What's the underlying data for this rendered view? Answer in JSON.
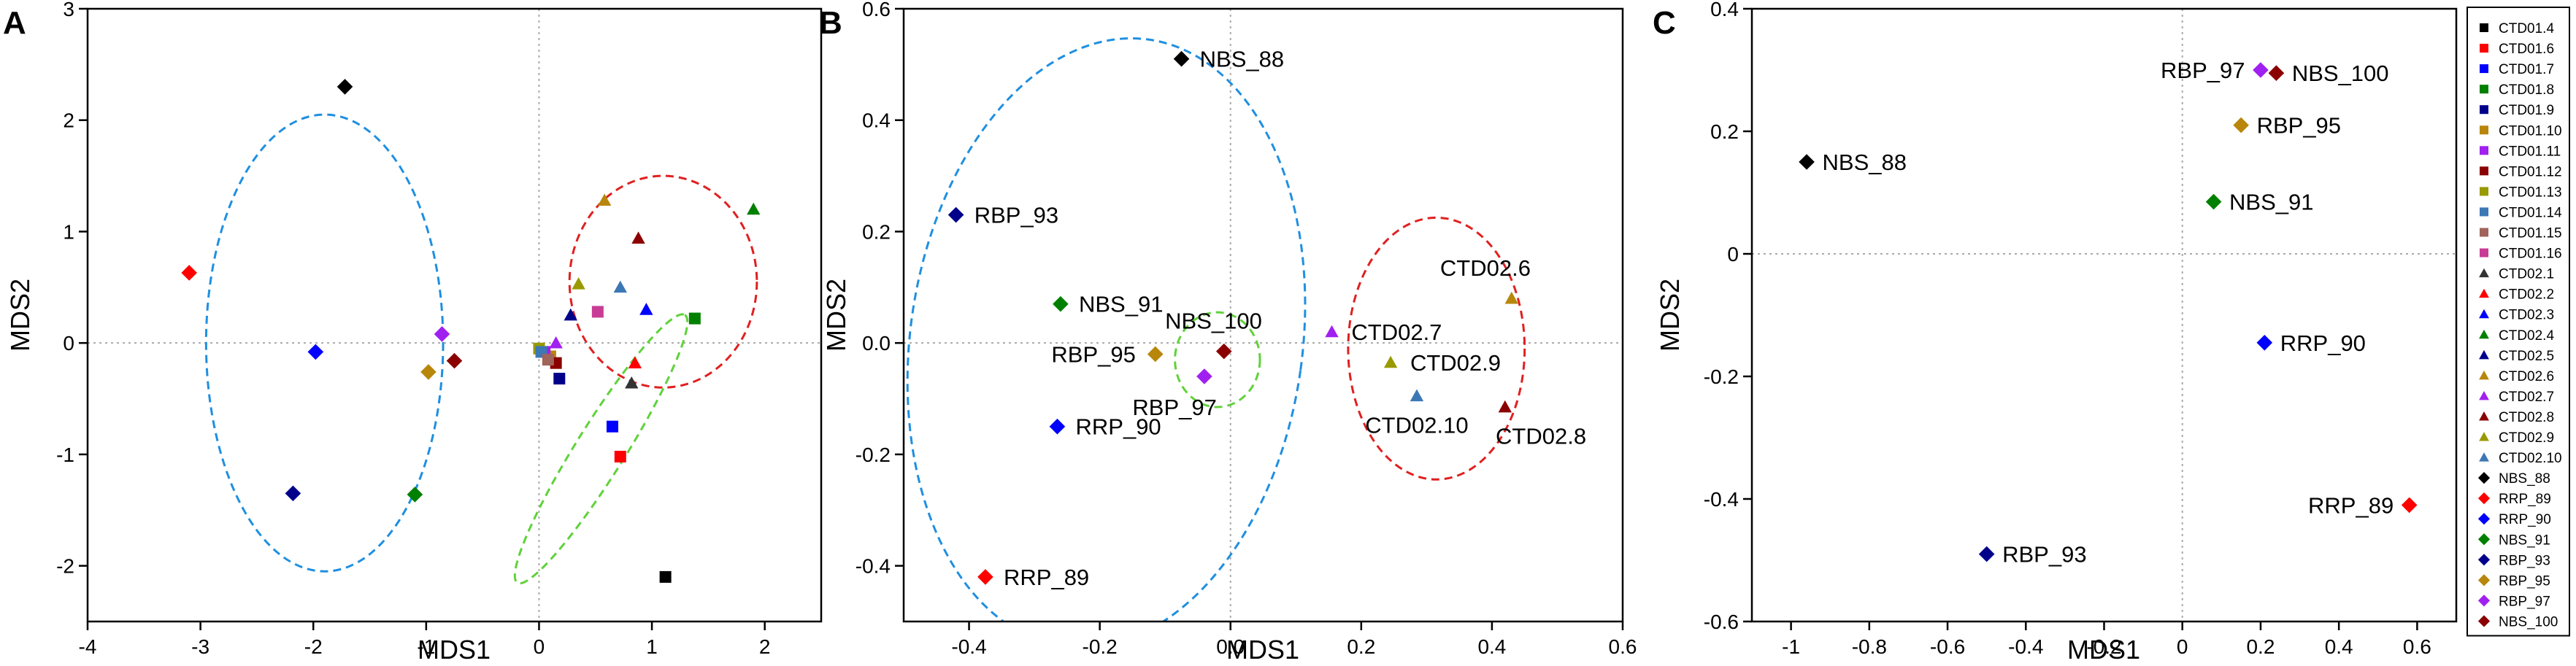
{
  "legend": [
    {
      "name": "CTD01.4",
      "shape": "square",
      "color": "#000000"
    },
    {
      "name": "CTD01.6",
      "shape": "square",
      "color": "#ff0000"
    },
    {
      "name": "CTD01.7",
      "shape": "square",
      "color": "#0000ff"
    },
    {
      "name": "CTD01.8",
      "shape": "square",
      "color": "#008000"
    },
    {
      "name": "CTD01.9",
      "shape": "square",
      "color": "#00008b"
    },
    {
      "name": "CTD01.10",
      "shape": "square",
      "color": "#b8860b"
    },
    {
      "name": "CTD01.11",
      "shape": "square",
      "color": "#a020f0"
    },
    {
      "name": "CTD01.12",
      "shape": "square",
      "color": "#8b0000"
    },
    {
      "name": "CTD01.13",
      "shape": "square",
      "color": "#999900"
    },
    {
      "name": "CTD01.14",
      "shape": "square",
      "color": "#3c78b4"
    },
    {
      "name": "CTD01.15",
      "shape": "square",
      "color": "#a0645a"
    },
    {
      "name": "CTD01.16",
      "shape": "square",
      "color": "#c83c96"
    },
    {
      "name": "CTD02.1",
      "shape": "triangle",
      "color": "#333333"
    },
    {
      "name": "CTD02.2",
      "shape": "triangle",
      "color": "#ff0000"
    },
    {
      "name": "CTD02.3",
      "shape": "triangle",
      "color": "#0000ff"
    },
    {
      "name": "CTD02.4",
      "shape": "triangle",
      "color": "#008000"
    },
    {
      "name": "CTD02.5",
      "shape": "triangle",
      "color": "#00008b"
    },
    {
      "name": "CTD02.6",
      "shape": "triangle",
      "color": "#b8860b"
    },
    {
      "name": "CTD02.7",
      "shape": "triangle",
      "color": "#a020f0"
    },
    {
      "name": "CTD02.8",
      "shape": "triangle",
      "color": "#8b0000"
    },
    {
      "name": "CTD02.9",
      "shape": "triangle",
      "color": "#999900"
    },
    {
      "name": "CTD02.10",
      "shape": "triangle",
      "color": "#3c78b4"
    },
    {
      "name": "NBS_88",
      "shape": "diamond",
      "color": "#000000"
    },
    {
      "name": "RRP_89",
      "shape": "diamond",
      "color": "#ff0000"
    },
    {
      "name": "RRP_90",
      "shape": "diamond",
      "color": "#0000ff"
    },
    {
      "name": "NBS_91",
      "shape": "diamond",
      "color": "#008000"
    },
    {
      "name": "RBP_93",
      "shape": "diamond",
      "color": "#00008b"
    },
    {
      "name": "RBP_95",
      "shape": "diamond",
      "color": "#b8860b"
    },
    {
      "name": "RBP_97",
      "shape": "diamond",
      "color": "#a020f0"
    },
    {
      "name": "NBS_100",
      "shape": "diamond",
      "color": "#8b0000"
    }
  ],
  "chart_data": [
    {
      "type": "scatter",
      "panel_label": "A",
      "xlabel": "MDS1",
      "ylabel": "MDS2",
      "xlim": [
        -4,
        2.5
      ],
      "ylim": [
        -2.5,
        3
      ],
      "xticks": [
        -4,
        -3,
        -2,
        -1,
        0,
        1,
        2
      ],
      "yticks": [
        -2,
        -1,
        0,
        1,
        2,
        3
      ],
      "points": [
        {
          "name": "CTD01.4",
          "x": 1.12,
          "y": -2.1
        },
        {
          "name": "CTD01.6",
          "x": 0.72,
          "y": -1.02
        },
        {
          "name": "CTD01.7",
          "x": 0.65,
          "y": -0.75
        },
        {
          "name": "CTD01.8",
          "x": 1.38,
          "y": 0.22
        },
        {
          "name": "CTD01.9",
          "x": 0.18,
          "y": -0.32
        },
        {
          "name": "CTD01.10",
          "x": 0.1,
          "y": -0.12
        },
        {
          "name": "CTD01.11",
          "x": 0.05,
          "y": -0.08
        },
        {
          "name": "CTD01.12",
          "x": 0.15,
          "y": -0.18
        },
        {
          "name": "CTD01.13",
          "x": 0.0,
          "y": -0.05
        },
        {
          "name": "CTD01.14",
          "x": 0.02,
          "y": -0.08
        },
        {
          "name": "CTD01.15",
          "x": 0.08,
          "y": -0.15
        },
        {
          "name": "CTD01.16",
          "x": 0.52,
          "y": 0.28
        },
        {
          "name": "CTD02.1",
          "x": 0.82,
          "y": -0.36
        },
        {
          "name": "CTD02.2",
          "x": 0.85,
          "y": -0.18
        },
        {
          "name": "CTD02.3",
          "x": 0.95,
          "y": 0.3
        },
        {
          "name": "CTD02.4",
          "x": 1.9,
          "y": 1.2
        },
        {
          "name": "CTD02.5",
          "x": 0.28,
          "y": 0.25
        },
        {
          "name": "CTD02.6",
          "x": 0.58,
          "y": 1.28
        },
        {
          "name": "CTD02.7",
          "x": 0.15,
          "y": 0.0
        },
        {
          "name": "CTD02.8",
          "x": 0.88,
          "y": 0.94
        },
        {
          "name": "CTD02.9",
          "x": 0.35,
          "y": 0.53
        },
        {
          "name": "CTD02.10",
          "x": 0.72,
          "y": 0.5
        },
        {
          "name": "NBS_88",
          "x": -1.72,
          "y": 2.3
        },
        {
          "name": "RRP_89",
          "x": -3.1,
          "y": 0.63
        },
        {
          "name": "RRP_90",
          "x": -1.98,
          "y": -0.08
        },
        {
          "name": "NBS_91",
          "x": -1.1,
          "y": -1.36
        },
        {
          "name": "RBP_93",
          "x": -2.18,
          "y": -1.35
        },
        {
          "name": "RBP_95",
          "x": -0.98,
          "y": -0.26
        },
        {
          "name": "RBP_97",
          "x": -0.86,
          "y": 0.08
        },
        {
          "name": "NBS_100",
          "x": -0.75,
          "y": -0.16
        }
      ],
      "labels": []
    },
    {
      "type": "scatter",
      "panel_label": "B",
      "xlabel": "MDS1",
      "ylabel": "MDS2",
      "xlim": [
        -0.5,
        0.6
      ],
      "ylim": [
        -0.5,
        0.6
      ],
      "xticks": [
        -0.4,
        -0.2,
        0,
        0.2,
        0.4,
        0.6
      ],
      "xtick_labels": [
        "-0.4",
        "-0.2",
        "0.0",
        "0.2",
        "0.4",
        "0.6"
      ],
      "yticks": [
        -0.4,
        -0.2,
        0,
        0.2,
        0.4,
        0.6
      ],
      "ytick_labels": [
        "-0.4",
        "-0.2",
        "0.0",
        "0.2",
        "0.4",
        "0.6"
      ],
      "points": [
        {
          "name": "NBS_88",
          "x": -0.075,
          "y": 0.51
        },
        {
          "name": "RBP_93",
          "x": -0.42,
          "y": 0.23
        },
        {
          "name": "NBS_91",
          "x": -0.26,
          "y": 0.07
        },
        {
          "name": "RBP_95",
          "x": -0.115,
          "y": -0.02
        },
        {
          "name": "NBS_100",
          "x": -0.01,
          "y": -0.015
        },
        {
          "name": "RBP_97",
          "x": -0.04,
          "y": -0.06
        },
        {
          "name": "RRP_90",
          "x": -0.265,
          "y": -0.15
        },
        {
          "name": "RRP_89",
          "x": -0.375,
          "y": -0.42
        },
        {
          "name": "CTD02.7",
          "x": 0.155,
          "y": 0.02
        },
        {
          "name": "CTD02.6",
          "x": 0.43,
          "y": 0.08
        },
        {
          "name": "CTD02.9",
          "x": 0.245,
          "y": -0.035
        },
        {
          "name": "CTD02.10",
          "x": 0.285,
          "y": -0.095
        },
        {
          "name": "CTD02.8",
          "x": 0.42,
          "y": -0.115
        }
      ],
      "labels": [
        {
          "text": "NBS_88",
          "dx": 0.028,
          "dy": 0,
          "anchor": "start"
        },
        {
          "text": "RBP_93",
          "dx": 0.028,
          "dy": 0,
          "anchor": "start"
        },
        {
          "text": "NBS_91",
          "dx": 0.028,
          "dy": 0,
          "anchor": "start"
        },
        {
          "text": "RBP_95",
          "dx": -0.03,
          "dy": 0,
          "anchor": "end"
        },
        {
          "text": "NBS_100",
          "dx": -0.09,
          "dy": 0.055,
          "anchor": "start"
        },
        {
          "text": "RBP_97",
          "dx": -0.11,
          "dy": -0.055,
          "anchor": "start"
        },
        {
          "text": "RRP_90",
          "dx": 0.028,
          "dy": 0,
          "anchor": "start"
        },
        {
          "text": "RRP_89",
          "dx": 0.028,
          "dy": 0,
          "anchor": "start"
        },
        {
          "text": "CTD02.7",
          "dx": 0.03,
          "dy": 0,
          "anchor": "start"
        },
        {
          "text": "CTD02.6",
          "dx": -0.04,
          "dy": 0.055,
          "anchor": "middle"
        },
        {
          "text": "CTD02.9",
          "dx": 0.03,
          "dy": 0,
          "anchor": "start"
        },
        {
          "text": "CTD02.10",
          "dx": 0.0,
          "dy": -0.052,
          "anchor": "middle"
        },
        {
          "text": "CTD02.8",
          "dx": 0.055,
          "dy": -0.052,
          "anchor": "middle"
        }
      ]
    },
    {
      "type": "scatter",
      "panel_label": "C",
      "xlabel": "MDS1",
      "ylabel": "MDS2",
      "xlim": [
        -1.1,
        0.7
      ],
      "ylim": [
        -0.6,
        0.4
      ],
      "xticks": [
        -1,
        -0.8,
        -0.6,
        -0.4,
        -0.2,
        0,
        0.2,
        0.4,
        0.6
      ],
      "xtick_labels": [
        "-1",
        "-0.8",
        "-0.6",
        "-0.4",
        "-0.2",
        "0",
        "0.2",
        "0.4",
        "0.6"
      ],
      "yticks": [
        -0.6,
        -0.4,
        -0.2,
        0,
        0.2,
        0.4
      ],
      "ytick_labels": [
        "-0.6",
        "-0.4",
        "-0.2",
        "0",
        "0.2",
        "0.4"
      ],
      "points": [
        {
          "name": "NBS_88",
          "x": -0.96,
          "y": 0.15
        },
        {
          "name": "RBP_97",
          "x": 0.2,
          "y": 0.3
        },
        {
          "name": "NBS_100",
          "x": 0.24,
          "y": 0.295
        },
        {
          "name": "RBP_95",
          "x": 0.15,
          "y": 0.21
        },
        {
          "name": "NBS_91",
          "x": 0.08,
          "y": 0.085
        },
        {
          "name": "RRP_90",
          "x": 0.21,
          "y": -0.145
        },
        {
          "name": "RRP_89",
          "x": 0.58,
          "y": -0.41
        },
        {
          "name": "RBP_93",
          "x": -0.5,
          "y": -0.49
        }
      ],
      "labels": [
        {
          "text": "NBS_88",
          "dx": 0.04,
          "dy": 0,
          "anchor": "start"
        },
        {
          "text": "RBP_97",
          "dx": -0.04,
          "dy": 0,
          "anchor": "end"
        },
        {
          "text": "NBS_100",
          "dx": 0.04,
          "dy": 0,
          "anchor": "start"
        },
        {
          "text": "RBP_95",
          "dx": 0.04,
          "dy": 0,
          "anchor": "start"
        },
        {
          "text": "NBS_91",
          "dx": 0.04,
          "dy": 0,
          "anchor": "start"
        },
        {
          "text": "RRP_90",
          "dx": 0.04,
          "dy": 0,
          "anchor": "start"
        },
        {
          "text": "RRP_89",
          "dx": -0.04,
          "dy": 0,
          "anchor": "end"
        },
        {
          "text": "RBP_93",
          "dx": 0.04,
          "dy": 0,
          "anchor": "start"
        }
      ]
    }
  ]
}
